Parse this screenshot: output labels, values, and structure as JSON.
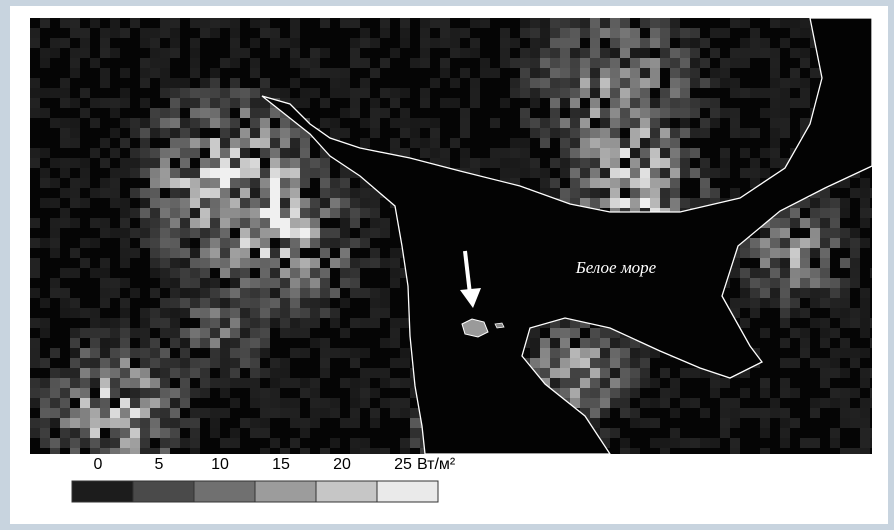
{
  "map": {
    "label": "Белое море",
    "legend": {
      "ticks": [
        0,
        5,
        10,
        15,
        20,
        25
      ],
      "unit": "Вт/м²",
      "colors": [
        "#1c1c1c",
        "#4a4a4a",
        "#707070",
        "#9c9c9c",
        "#c6c6c6",
        "#eaeaea"
      ]
    }
  }
}
